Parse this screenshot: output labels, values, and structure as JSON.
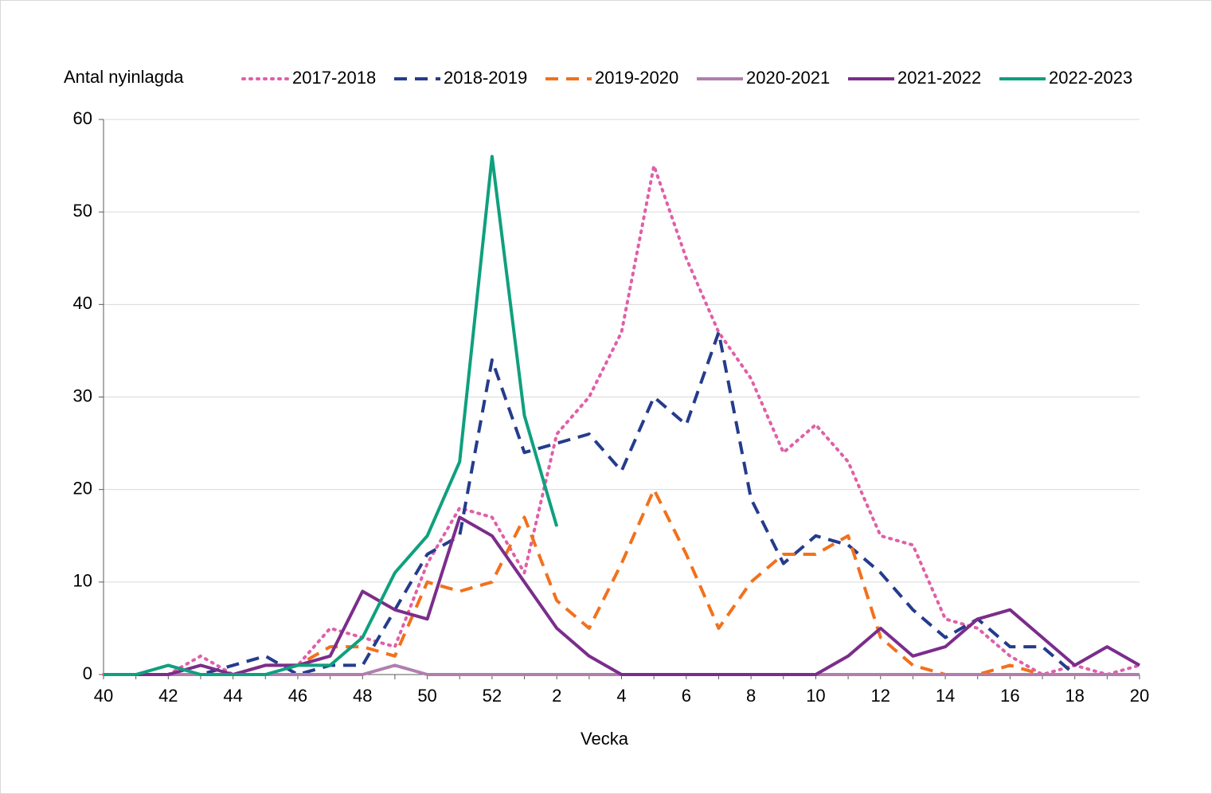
{
  "chart_data": {
    "type": "line",
    "y_label": "Antal nyinlagda",
    "x_label": "Vecka",
    "categories": [
      "40",
      null,
      "42",
      null,
      "44",
      null,
      "46",
      null,
      "48",
      null,
      "50",
      null,
      "52",
      null,
      "2",
      null,
      "4",
      null,
      "6",
      null,
      "8",
      null,
      "10",
      null,
      "12",
      null,
      "14",
      null,
      "16",
      null,
      "18",
      null,
      "20"
    ],
    "ylim": [
      0,
      60
    ],
    "yticks": [
      0,
      10,
      20,
      30,
      40,
      50,
      60
    ],
    "grid": true,
    "legend": "top",
    "series": [
      {
        "name": "2017-2018",
        "color": "#e05fa8",
        "dash": "dotted",
        "values": [
          0,
          0,
          0,
          2,
          0,
          1,
          1,
          5,
          4,
          3,
          12,
          18,
          17,
          11,
          26,
          30,
          37,
          55,
          45,
          37,
          32,
          24,
          27,
          23,
          15,
          14,
          6,
          5,
          2,
          0,
          1,
          0,
          1
        ]
      },
      {
        "name": "2018-2019",
        "color": "#253c8c",
        "dash": "dashed",
        "values": [
          0,
          0,
          0,
          0,
          1,
          2,
          0,
          1,
          1,
          7,
          13,
          15,
          34,
          24,
          25,
          26,
          22,
          30,
          27,
          37,
          19,
          12,
          15,
          14,
          11,
          7,
          4,
          6,
          3,
          3,
          0,
          0,
          0
        ]
      },
      {
        "name": "2019-2020",
        "color": "#f2711c",
        "dash": "dashed",
        "values": [
          0,
          0,
          0,
          0,
          0,
          1,
          1,
          3,
          3,
          2,
          10,
          9,
          10,
          17,
          8,
          5,
          12,
          20,
          13,
          5,
          10,
          13,
          13,
          15,
          4,
          1,
          0,
          0,
          1,
          0,
          0,
          0,
          0
        ]
      },
      {
        "name": "2020-2021",
        "color": "#b07fae",
        "dash": "solid",
        "values": [
          0,
          0,
          0,
          0,
          0,
          0,
          0,
          0,
          0,
          1,
          0,
          0,
          0,
          0,
          0,
          0,
          0,
          0,
          0,
          0,
          0,
          0,
          0,
          0,
          0,
          0,
          0,
          0,
          0,
          0,
          0,
          0,
          0
        ]
      },
      {
        "name": "2021-2022",
        "color": "#7b2d8b",
        "dash": "solid",
        "values": [
          0,
          0,
          0,
          1,
          0,
          1,
          1,
          2,
          9,
          7,
          6,
          17,
          15,
          10,
          5,
          2,
          0,
          0,
          0,
          0,
          0,
          0,
          0,
          2,
          5,
          2,
          3,
          6,
          7,
          4,
          1,
          3,
          1
        ]
      },
      {
        "name": "2022-2023",
        "color": "#0fa07e",
        "dash": "solid",
        "values": [
          0,
          0,
          1,
          0,
          0,
          0,
          1,
          1,
          4,
          11,
          15,
          23,
          56,
          28,
          16,
          null,
          null,
          null,
          null,
          null,
          null,
          null,
          null,
          null,
          null,
          null,
          null,
          null,
          null,
          null,
          null,
          null,
          null
        ]
      }
    ]
  }
}
